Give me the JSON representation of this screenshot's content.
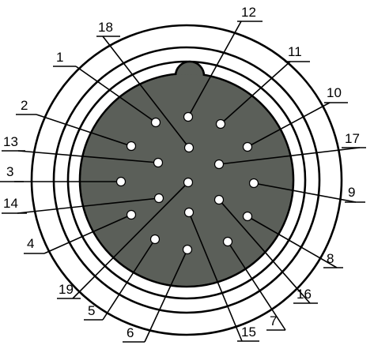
{
  "colors": {
    "body_fill": "#5b5f59",
    "ring_stroke": "#000000",
    "pin_fill": "#ffffff",
    "background": "#ffffff"
  },
  "pins": [
    {
      "label": "1"
    },
    {
      "label": "2"
    },
    {
      "label": "3"
    },
    {
      "label": "4"
    },
    {
      "label": "5"
    },
    {
      "label": "6"
    },
    {
      "label": "7"
    },
    {
      "label": "8"
    },
    {
      "label": "9"
    },
    {
      "label": "10"
    },
    {
      "label": "11"
    },
    {
      "label": "12"
    },
    {
      "label": "13"
    },
    {
      "label": "14"
    },
    {
      "label": "15"
    },
    {
      "label": "16"
    },
    {
      "label": "17"
    },
    {
      "label": "18"
    },
    {
      "label": "19"
    }
  ]
}
